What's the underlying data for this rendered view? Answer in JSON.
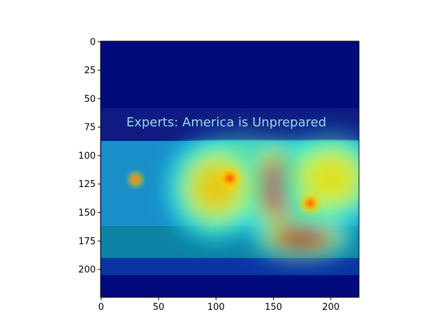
{
  "chart_data": {
    "type": "heatmap",
    "title": "",
    "xlabel": "",
    "ylabel": "",
    "xlim": [
      0,
      224
    ],
    "ylim": [
      224,
      0
    ],
    "x_ticks": [
      0,
      50,
      100,
      150,
      200
    ],
    "y_ticks": [
      0,
      25,
      50,
      75,
      100,
      125,
      150,
      175,
      200
    ],
    "grid": false,
    "colormap": "jet",
    "image_caption": "Experts: America is Unprepared",
    "hotspots": [
      {
        "x": 125,
        "y": 118,
        "sx": 28,
        "sy": 26,
        "intensity": 1.0
      },
      {
        "x": 160,
        "y": 128,
        "sx": 30,
        "sy": 30,
        "intensity": 0.9
      },
      {
        "x": 175,
        "y": 172,
        "sx": 28,
        "sy": 12,
        "intensity": 1.0
      },
      {
        "x": 182,
        "y": 142,
        "sx": 14,
        "sy": 14,
        "intensity": 0.75
      },
      {
        "x": 100,
        "y": 128,
        "sx": 28,
        "sy": 30,
        "intensity": 0.55
      },
      {
        "x": 200,
        "y": 120,
        "sx": 30,
        "sy": 28,
        "intensity": 0.5
      }
    ],
    "storm_markers": [
      {
        "x": 112,
        "y": 120,
        "r": 9
      },
      {
        "x": 182,
        "y": 142,
        "r": 8
      },
      {
        "x": 30,
        "y": 121,
        "r": 6
      }
    ]
  }
}
